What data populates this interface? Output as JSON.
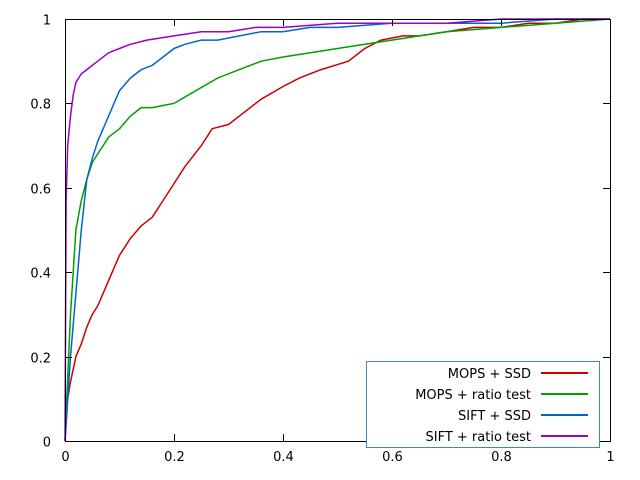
{
  "chart_data": {
    "type": "line",
    "title": "",
    "xlabel": "",
    "ylabel": "",
    "xlim": [
      0,
      1
    ],
    "ylim": [
      0,
      1
    ],
    "xticks": [
      "0",
      "0.2",
      "0.4",
      "0.6",
      "0.8",
      "1"
    ],
    "xtick_values": [
      0,
      0.2,
      0.4,
      0.6,
      0.8,
      1
    ],
    "yticks": [
      "0",
      "0.2",
      "0.4",
      "0.6",
      "0.8",
      "1"
    ],
    "ytick_values": [
      0,
      0.2,
      0.4,
      0.6,
      0.8,
      1
    ],
    "grid": false,
    "legend_position": "bottom-right",
    "series": [
      {
        "name": "MOPS + SSD",
        "color": "#cc0000",
        "x": [
          0,
          0.005,
          0.01,
          0.02,
          0.03,
          0.04,
          0.05,
          0.06,
          0.08,
          0.1,
          0.12,
          0.14,
          0.16,
          0.18,
          0.2,
          0.22,
          0.25,
          0.27,
          0.3,
          0.33,
          0.36,
          0.4,
          0.43,
          0.47,
          0.52,
          0.55,
          0.58,
          0.62,
          0.65,
          0.7,
          0.75,
          0.8,
          0.85,
          0.9,
          0.95,
          1.0
        ],
        "y": [
          0,
          0.1,
          0.14,
          0.2,
          0.23,
          0.27,
          0.3,
          0.32,
          0.38,
          0.44,
          0.48,
          0.51,
          0.53,
          0.57,
          0.61,
          0.65,
          0.7,
          0.74,
          0.75,
          0.78,
          0.81,
          0.84,
          0.86,
          0.88,
          0.9,
          0.93,
          0.95,
          0.96,
          0.96,
          0.97,
          0.98,
          0.98,
          0.99,
          0.99,
          1.0,
          1.0
        ]
      },
      {
        "name": "MOPS + ratio test",
        "color": "#00a000",
        "x": [
          0,
          0.005,
          0.01,
          0.02,
          0.03,
          0.04,
          0.05,
          0.06,
          0.08,
          0.1,
          0.12,
          0.14,
          0.16,
          0.2,
          0.24,
          0.28,
          0.32,
          0.36,
          0.4,
          0.45,
          0.5,
          0.55,
          0.6,
          0.65,
          0.7,
          0.8,
          0.9,
          1.0
        ],
        "y": [
          0,
          0.15,
          0.3,
          0.5,
          0.57,
          0.62,
          0.66,
          0.68,
          0.72,
          0.74,
          0.77,
          0.79,
          0.79,
          0.8,
          0.83,
          0.86,
          0.88,
          0.9,
          0.91,
          0.92,
          0.93,
          0.94,
          0.95,
          0.96,
          0.97,
          0.98,
          0.99,
          1.0
        ]
      },
      {
        "name": "SIFT + SSD",
        "color": "#0066cc",
        "x": [
          0,
          0.005,
          0.01,
          0.02,
          0.03,
          0.04,
          0.05,
          0.06,
          0.07,
          0.08,
          0.09,
          0.1,
          0.12,
          0.14,
          0.16,
          0.18,
          0.2,
          0.22,
          0.25,
          0.28,
          0.32,
          0.36,
          0.4,
          0.45,
          0.5,
          0.6,
          0.7,
          0.8,
          0.9,
          1.0
        ],
        "y": [
          0,
          0.1,
          0.2,
          0.35,
          0.5,
          0.62,
          0.67,
          0.71,
          0.74,
          0.77,
          0.8,
          0.83,
          0.86,
          0.88,
          0.89,
          0.91,
          0.93,
          0.94,
          0.95,
          0.95,
          0.96,
          0.97,
          0.97,
          0.98,
          0.98,
          0.99,
          0.99,
          0.99,
          1.0,
          1.0
        ]
      },
      {
        "name": "SIFT + ratio test",
        "color": "#9900cc",
        "x": [
          0,
          0.002,
          0.005,
          0.01,
          0.015,
          0.02,
          0.025,
          0.03,
          0.04,
          0.05,
          0.06,
          0.08,
          0.1,
          0.12,
          0.15,
          0.2,
          0.25,
          0.3,
          0.35,
          0.4,
          0.5,
          0.6,
          0.7,
          0.8,
          0.9,
          1.0
        ],
        "y": [
          0,
          0.57,
          0.7,
          0.77,
          0.82,
          0.85,
          0.86,
          0.87,
          0.88,
          0.89,
          0.9,
          0.92,
          0.93,
          0.94,
          0.95,
          0.96,
          0.97,
          0.97,
          0.98,
          0.98,
          0.99,
          0.99,
          0.99,
          1.0,
          1.0,
          1.0
        ]
      }
    ]
  }
}
